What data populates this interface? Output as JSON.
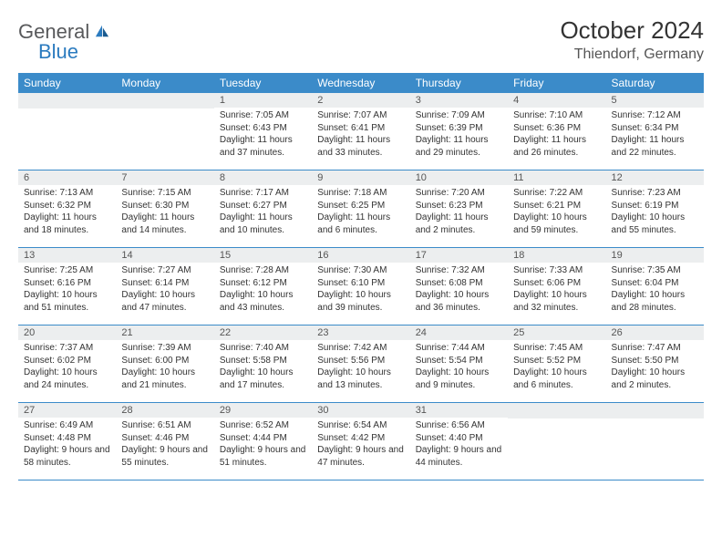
{
  "brand": {
    "part1": "General",
    "part2": "Blue"
  },
  "title": "October 2024",
  "location": "Thiendorf, Germany",
  "colors": {
    "header_bg": "#3b8bc9",
    "header_text": "#ffffff",
    "daynum_bg": "#eceeef",
    "row_border": "#3b8bc9",
    "logo_gray": "#58595b",
    "logo_blue": "#2b7bbf"
  },
  "days_of_week": [
    "Sunday",
    "Monday",
    "Tuesday",
    "Wednesday",
    "Thursday",
    "Friday",
    "Saturday"
  ],
  "weeks": [
    [
      null,
      null,
      {
        "n": "1",
        "sr": "Sunrise: 7:05 AM",
        "ss": "Sunset: 6:43 PM",
        "dl": "Daylight: 11 hours and 37 minutes."
      },
      {
        "n": "2",
        "sr": "Sunrise: 7:07 AM",
        "ss": "Sunset: 6:41 PM",
        "dl": "Daylight: 11 hours and 33 minutes."
      },
      {
        "n": "3",
        "sr": "Sunrise: 7:09 AM",
        "ss": "Sunset: 6:39 PM",
        "dl": "Daylight: 11 hours and 29 minutes."
      },
      {
        "n": "4",
        "sr": "Sunrise: 7:10 AM",
        "ss": "Sunset: 6:36 PM",
        "dl": "Daylight: 11 hours and 26 minutes."
      },
      {
        "n": "5",
        "sr": "Sunrise: 7:12 AM",
        "ss": "Sunset: 6:34 PM",
        "dl": "Daylight: 11 hours and 22 minutes."
      }
    ],
    [
      {
        "n": "6",
        "sr": "Sunrise: 7:13 AM",
        "ss": "Sunset: 6:32 PM",
        "dl": "Daylight: 11 hours and 18 minutes."
      },
      {
        "n": "7",
        "sr": "Sunrise: 7:15 AM",
        "ss": "Sunset: 6:30 PM",
        "dl": "Daylight: 11 hours and 14 minutes."
      },
      {
        "n": "8",
        "sr": "Sunrise: 7:17 AM",
        "ss": "Sunset: 6:27 PM",
        "dl": "Daylight: 11 hours and 10 minutes."
      },
      {
        "n": "9",
        "sr": "Sunrise: 7:18 AM",
        "ss": "Sunset: 6:25 PM",
        "dl": "Daylight: 11 hours and 6 minutes."
      },
      {
        "n": "10",
        "sr": "Sunrise: 7:20 AM",
        "ss": "Sunset: 6:23 PM",
        "dl": "Daylight: 11 hours and 2 minutes."
      },
      {
        "n": "11",
        "sr": "Sunrise: 7:22 AM",
        "ss": "Sunset: 6:21 PM",
        "dl": "Daylight: 10 hours and 59 minutes."
      },
      {
        "n": "12",
        "sr": "Sunrise: 7:23 AM",
        "ss": "Sunset: 6:19 PM",
        "dl": "Daylight: 10 hours and 55 minutes."
      }
    ],
    [
      {
        "n": "13",
        "sr": "Sunrise: 7:25 AM",
        "ss": "Sunset: 6:16 PM",
        "dl": "Daylight: 10 hours and 51 minutes."
      },
      {
        "n": "14",
        "sr": "Sunrise: 7:27 AM",
        "ss": "Sunset: 6:14 PM",
        "dl": "Daylight: 10 hours and 47 minutes."
      },
      {
        "n": "15",
        "sr": "Sunrise: 7:28 AM",
        "ss": "Sunset: 6:12 PM",
        "dl": "Daylight: 10 hours and 43 minutes."
      },
      {
        "n": "16",
        "sr": "Sunrise: 7:30 AM",
        "ss": "Sunset: 6:10 PM",
        "dl": "Daylight: 10 hours and 39 minutes."
      },
      {
        "n": "17",
        "sr": "Sunrise: 7:32 AM",
        "ss": "Sunset: 6:08 PM",
        "dl": "Daylight: 10 hours and 36 minutes."
      },
      {
        "n": "18",
        "sr": "Sunrise: 7:33 AM",
        "ss": "Sunset: 6:06 PM",
        "dl": "Daylight: 10 hours and 32 minutes."
      },
      {
        "n": "19",
        "sr": "Sunrise: 7:35 AM",
        "ss": "Sunset: 6:04 PM",
        "dl": "Daylight: 10 hours and 28 minutes."
      }
    ],
    [
      {
        "n": "20",
        "sr": "Sunrise: 7:37 AM",
        "ss": "Sunset: 6:02 PM",
        "dl": "Daylight: 10 hours and 24 minutes."
      },
      {
        "n": "21",
        "sr": "Sunrise: 7:39 AM",
        "ss": "Sunset: 6:00 PM",
        "dl": "Daylight: 10 hours and 21 minutes."
      },
      {
        "n": "22",
        "sr": "Sunrise: 7:40 AM",
        "ss": "Sunset: 5:58 PM",
        "dl": "Daylight: 10 hours and 17 minutes."
      },
      {
        "n": "23",
        "sr": "Sunrise: 7:42 AM",
        "ss": "Sunset: 5:56 PM",
        "dl": "Daylight: 10 hours and 13 minutes."
      },
      {
        "n": "24",
        "sr": "Sunrise: 7:44 AM",
        "ss": "Sunset: 5:54 PM",
        "dl": "Daylight: 10 hours and 9 minutes."
      },
      {
        "n": "25",
        "sr": "Sunrise: 7:45 AM",
        "ss": "Sunset: 5:52 PM",
        "dl": "Daylight: 10 hours and 6 minutes."
      },
      {
        "n": "26",
        "sr": "Sunrise: 7:47 AM",
        "ss": "Sunset: 5:50 PM",
        "dl": "Daylight: 10 hours and 2 minutes."
      }
    ],
    [
      {
        "n": "27",
        "sr": "Sunrise: 6:49 AM",
        "ss": "Sunset: 4:48 PM",
        "dl": "Daylight: 9 hours and 58 minutes."
      },
      {
        "n": "28",
        "sr": "Sunrise: 6:51 AM",
        "ss": "Sunset: 4:46 PM",
        "dl": "Daylight: 9 hours and 55 minutes."
      },
      {
        "n": "29",
        "sr": "Sunrise: 6:52 AM",
        "ss": "Sunset: 4:44 PM",
        "dl": "Daylight: 9 hours and 51 minutes."
      },
      {
        "n": "30",
        "sr": "Sunrise: 6:54 AM",
        "ss": "Sunset: 4:42 PM",
        "dl": "Daylight: 9 hours and 47 minutes."
      },
      {
        "n": "31",
        "sr": "Sunrise: 6:56 AM",
        "ss": "Sunset: 4:40 PM",
        "dl": "Daylight: 9 hours and 44 minutes."
      },
      null,
      null
    ]
  ]
}
